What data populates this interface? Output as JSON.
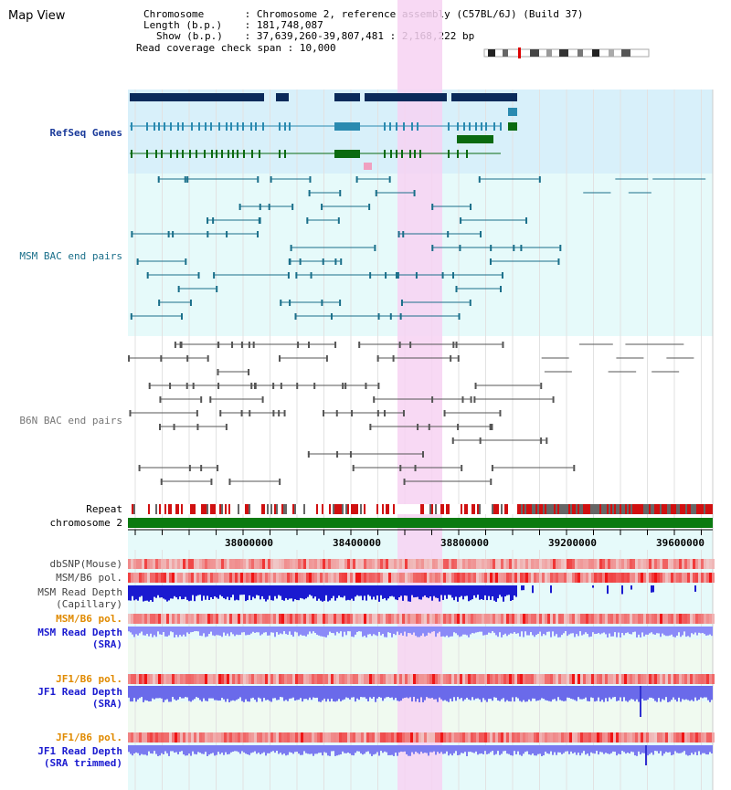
{
  "header": {
    "title": "Map View",
    "info": [
      {
        "label": "Chromosome",
        "value": "Chromosome 2, reference assembly (C57BL/6J) (Build 37)"
      },
      {
        "label": "Length (b.p.)",
        "value": "181,748,087"
      },
      {
        "label": "Show (b.p.)",
        "value": "37,639,260-39,807,481 : 2,168,222 bp"
      },
      {
        "label": "Read coverage check span",
        "value": "10,000"
      }
    ]
  },
  "tracks": {
    "refseq": {
      "label": "RefSeq Genes",
      "color": "#1a3a9a"
    },
    "msm_bac": {
      "label": "MSM BAC end pairs",
      "color": "#1a6f8a"
    },
    "b6n_bac": {
      "label": "B6N BAC end pairs",
      "color": "#777777"
    },
    "repeat": {
      "label": "Repeat"
    },
    "chromosome": {
      "label": "chromosome 2"
    },
    "dbsnp": {
      "label": "dbSNP(Mouse)"
    },
    "msm_b6_pol_1": {
      "label": "MSM/B6 pol."
    },
    "msm_depth_cap": {
      "label_line1": "MSM Read Depth",
      "label_line2": "(Capillary)"
    },
    "msm_b6_pol_2": {
      "label": "MSM/B6 pol.",
      "color": "#e08a00"
    },
    "msm_depth_sra": {
      "label_line1": "MSM Read Depth",
      "label_line2": "(SRA)",
      "color": "#1a1ad0"
    },
    "jf1_b6_pol_1": {
      "label": "JF1/B6 pol.",
      "color": "#e08a00"
    },
    "jf1_depth_sra": {
      "label_line1": "JF1 Read Depth",
      "label_line2": "(SRA)",
      "color": "#1a1ad0"
    },
    "jf1_b6_pol_2": {
      "label": "JF1/B6 pol.",
      "color": "#e08a00"
    },
    "jf1_depth_trim": {
      "label_line1": "JF1 Read Depth",
      "label_line2": "(SRA trimmed)",
      "color": "#1a1ad0"
    }
  },
  "axis": {
    "ticks": [
      "38000000",
      "38400000",
      "38800000",
      "39200000",
      "39600000"
    ]
  }
}
